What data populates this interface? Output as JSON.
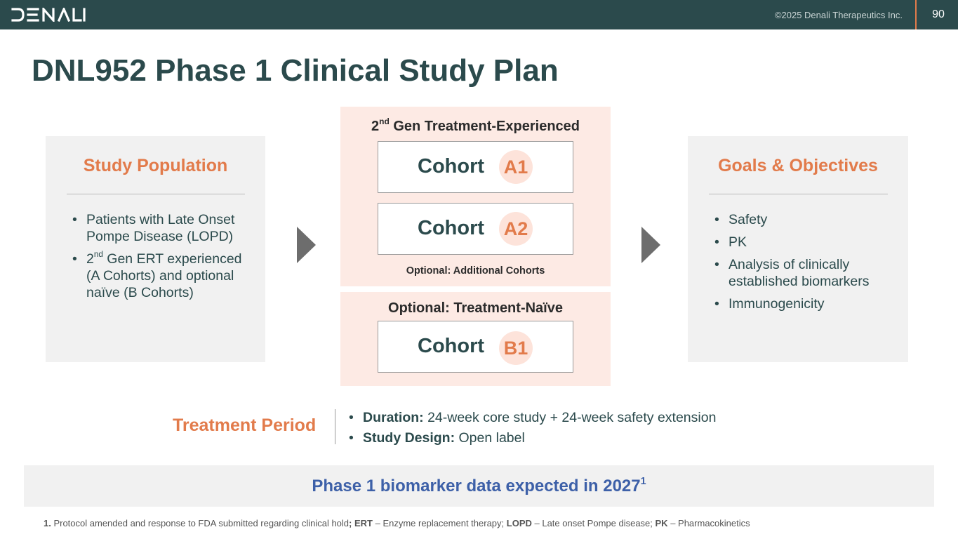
{
  "header": {
    "logo_text": "DENALI",
    "copyright": "©2025 Denali Therapeutics Inc.",
    "page_number": "90"
  },
  "title": "DNL952 Phase 1 Clinical Study Plan",
  "study_population": {
    "heading": "Study Population",
    "bullets": [
      {
        "text": "Patients with Late Onset Pompe Disease (LOPD)"
      },
      {
        "pre": "2",
        "sup": "nd",
        "post": " Gen ERT experienced (A Cohorts) and optional naïve (B Cohorts)"
      }
    ]
  },
  "treatment_experienced": {
    "heading_pre": "2",
    "heading_sup": "nd",
    "heading_post": " Gen Treatment-Experienced",
    "cohorts": [
      {
        "word": "Cohort",
        "badge": "A1"
      },
      {
        "word": "Cohort",
        "badge": "A2"
      }
    ],
    "note": "Optional: Additional Cohorts"
  },
  "treatment_naive": {
    "heading": "Optional: Treatment-Naïve",
    "cohorts": [
      {
        "word": "Cohort",
        "badge": "B1"
      }
    ]
  },
  "goals": {
    "heading": "Goals & Objectives",
    "bullets": [
      "Safety",
      "PK",
      "Analysis of clinically established biomarkers",
      "Immunogenicity"
    ]
  },
  "treatment_period": {
    "label": "Treatment Period",
    "items": [
      {
        "key": "Duration:",
        "value": " 24-week core study + 24-week safety extension"
      },
      {
        "key": "Study Design:",
        "value": " Open label"
      }
    ]
  },
  "banner": {
    "text": "Phase 1 biomarker data expected in 2027",
    "sup": "1"
  },
  "footnote": {
    "num": "1.",
    "t1": " Protocol amended and response to FDA submitted regarding clinical hold",
    "k1": "; ERT",
    "t2": " – Enzyme replacement therapy; ",
    "k2": "LOPD",
    "t3": " – Late onset Pompe disease; ",
    "k3": "PK",
    "t4": " – Pharmacokinetics"
  },
  "colors": {
    "header_bg": "#2b4a4c",
    "accent_orange": "#e27b4b",
    "panel_pink": "#fdeae4",
    "banner_blue": "#3d60a8"
  }
}
